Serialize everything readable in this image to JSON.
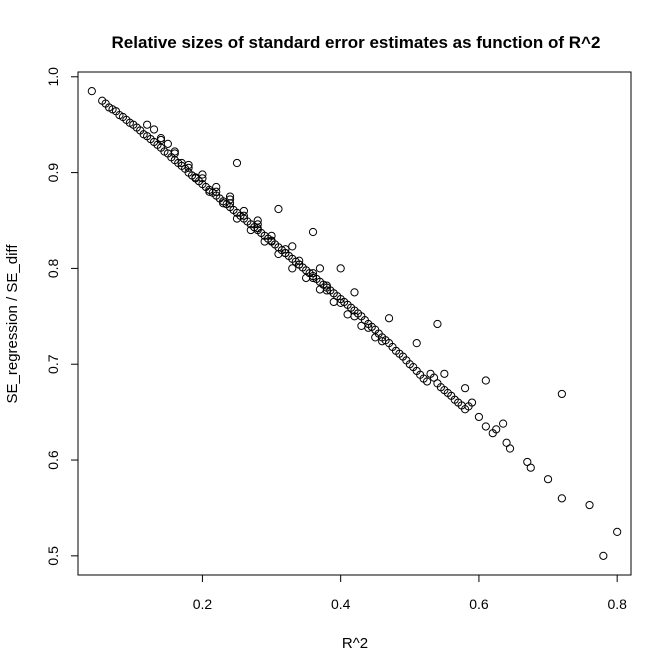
{
  "chart_data": {
    "type": "scatter",
    "title": "Relative sizes of standard error estimates as function of R^2",
    "xlabel": "R^2",
    "ylabel": "SE_regression / SE_diff",
    "xlim": [
      0.02,
      0.82
    ],
    "ylim": [
      0.48,
      1.005
    ],
    "xticks": [
      0.2,
      0.4,
      0.6,
      0.8
    ],
    "yticks": [
      0.5,
      0.6,
      0.7,
      0.8,
      0.9,
      1.0
    ],
    "xtick_labels": [
      "0.2",
      "0.4",
      "0.6",
      "0.8"
    ],
    "ytick_labels": [
      "0.5",
      "0.6",
      "0.7",
      "0.8",
      "0.9",
      "1.0"
    ],
    "grid": false,
    "marker": "open-circle",
    "series": [
      {
        "x": [
          0.04,
          0.055,
          0.06,
          0.065,
          0.07,
          0.075,
          0.08,
          0.085,
          0.09,
          0.095,
          0.1,
          0.105,
          0.11,
          0.115,
          0.12,
          0.125,
          0.13,
          0.135,
          0.14,
          0.145,
          0.15,
          0.155,
          0.16,
          0.165,
          0.17,
          0.175,
          0.18,
          0.185,
          0.19,
          0.195,
          0.2,
          0.205,
          0.21,
          0.215,
          0.22,
          0.225,
          0.23,
          0.235,
          0.24,
          0.245,
          0.25,
          0.255,
          0.26,
          0.265,
          0.27,
          0.275,
          0.28,
          0.285,
          0.29,
          0.295,
          0.3,
          0.305,
          0.31,
          0.315,
          0.32,
          0.325,
          0.33,
          0.335,
          0.34,
          0.345,
          0.35,
          0.355,
          0.36,
          0.365,
          0.37,
          0.375,
          0.38,
          0.385,
          0.39,
          0.395,
          0.4,
          0.405,
          0.41,
          0.415,
          0.42,
          0.425,
          0.43,
          0.435,
          0.44,
          0.445,
          0.45,
          0.455,
          0.46,
          0.465,
          0.47,
          0.475,
          0.48,
          0.485,
          0.49,
          0.495,
          0.5,
          0.505,
          0.51,
          0.515,
          0.52,
          0.525,
          0.53,
          0.535,
          0.54,
          0.545,
          0.55,
          0.555,
          0.56,
          0.565,
          0.57,
          0.575,
          0.58,
          0.585,
          0.59,
          0.6,
          0.61,
          0.62,
          0.625,
          0.635,
          0.64,
          0.645,
          0.67,
          0.675,
          0.7,
          0.72,
          0.76,
          0.78,
          0.8,
          0.13,
          0.15,
          0.17,
          0.19,
          0.21,
          0.23,
          0.25,
          0.27,
          0.29,
          0.31,
          0.33,
          0.35,
          0.37,
          0.39,
          0.41,
          0.43,
          0.45,
          0.14,
          0.16,
          0.18,
          0.22,
          0.24,
          0.26,
          0.28,
          0.3,
          0.32,
          0.34,
          0.36,
          0.38,
          0.12,
          0.14,
          0.16,
          0.18,
          0.2,
          0.22,
          0.24,
          0.26,
          0.28,
          0.3,
          0.32,
          0.34,
          0.36,
          0.38,
          0.4,
          0.42,
          0.44,
          0.46,
          0.25,
          0.31,
          0.36,
          0.4,
          0.54,
          0.61,
          0.72,
          0.2,
          0.24,
          0.28,
          0.33,
          0.37,
          0.42,
          0.47,
          0.51,
          0.55,
          0.58
        ],
        "y": [
          0.985,
          0.975,
          0.972,
          0.968,
          0.966,
          0.964,
          0.96,
          0.958,
          0.955,
          0.952,
          0.95,
          0.947,
          0.944,
          0.94,
          0.938,
          0.935,
          0.932,
          0.929,
          0.926,
          0.922,
          0.92,
          0.916,
          0.913,
          0.91,
          0.907,
          0.904,
          0.9,
          0.897,
          0.894,
          0.891,
          0.888,
          0.885,
          0.882,
          0.879,
          0.876,
          0.873,
          0.87,
          0.867,
          0.864,
          0.861,
          0.858,
          0.855,
          0.852,
          0.849,
          0.846,
          0.843,
          0.84,
          0.837,
          0.834,
          0.831,
          0.828,
          0.825,
          0.822,
          0.819,
          0.816,
          0.813,
          0.81,
          0.807,
          0.804,
          0.801,
          0.798,
          0.795,
          0.792,
          0.789,
          0.786,
          0.783,
          0.78,
          0.777,
          0.774,
          0.771,
          0.768,
          0.765,
          0.762,
          0.759,
          0.756,
          0.753,
          0.75,
          0.746,
          0.742,
          0.739,
          0.736,
          0.732,
          0.728,
          0.725,
          0.722,
          0.718,
          0.714,
          0.711,
          0.708,
          0.704,
          0.7,
          0.697,
          0.693,
          0.689,
          0.685,
          0.682,
          0.69,
          0.686,
          0.68,
          0.676,
          0.673,
          0.67,
          0.667,
          0.663,
          0.66,
          0.657,
          0.653,
          0.656,
          0.66,
          0.645,
          0.635,
          0.628,
          0.632,
          0.638,
          0.618,
          0.612,
          0.598,
          0.592,
          0.58,
          0.56,
          0.553,
          0.5,
          0.525,
          0.945,
          0.93,
          0.91,
          0.895,
          0.88,
          0.868,
          0.852,
          0.84,
          0.828,
          0.815,
          0.8,
          0.79,
          0.778,
          0.765,
          0.752,
          0.74,
          0.728,
          0.934,
          0.92,
          0.905,
          0.885,
          0.872,
          0.86,
          0.846,
          0.834,
          0.82,
          0.808,
          0.795,
          0.782,
          0.95,
          0.936,
          0.922,
          0.908,
          0.894,
          0.88,
          0.868,
          0.855,
          0.842,
          0.829,
          0.816,
          0.804,
          0.79,
          0.777,
          0.764,
          0.75,
          0.738,
          0.724,
          0.91,
          0.862,
          0.838,
          0.8,
          0.742,
          0.683,
          0.669,
          0.898,
          0.875,
          0.85,
          0.823,
          0.8,
          0.775,
          0.748,
          0.722,
          0.69,
          0.675
        ]
      }
    ]
  }
}
